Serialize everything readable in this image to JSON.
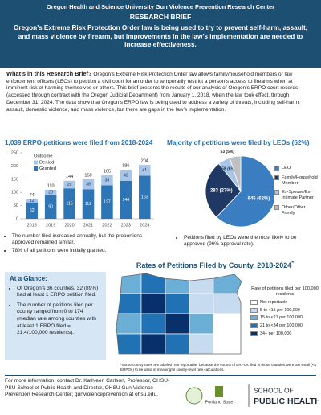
{
  "header": {
    "organization": "Oregon Health and Science University Gun Violence Prevention Research Center",
    "label": "RESEARCH BRIEF",
    "headline": "Oregon’s Extreme Risk Protection Order law is being used to try to prevent self-harm, assault, and mass violence by firearm, but improvements in the law’s implementation are needed to increase effectiveness."
  },
  "intro": {
    "heading": "What’s in this Research Brief?",
    "text": "Oregon’s Extreme Risk Protection Order law allows family/household members or law enforcement officers (LEOs) to petition a civil court for an order to temporarily restrict a person’s access to firearms when at imminent risk of harming themselves or others. This brief presents the results of our analysis of Oregon’s ERPO court records (accessed through contract with the Oregon Judicial Department) from January 1, 2018, when the law took effect, through December 31, 2024. The data show that Oregon’s ERPO law is being used to address a variety of threats, including self-harm, assault, domestic violence, and mass violence, but there are gaps in the law’s implementation."
  },
  "chart_data": [
    {
      "type": "bar",
      "stacked": true,
      "title": "1,039 ERPO petitions were filed from 2018-2024",
      "legend_title": "Outcome",
      "categories": [
        "2018",
        "2019",
        "2020",
        "2021",
        "2022",
        "2023",
        "2024"
      ],
      "series": [
        {
          "name": "Denied",
          "color": "#a9c6e8",
          "values": [
            12,
            20,
            29,
            38,
            38,
            42,
            41
          ]
        },
        {
          "name": "Granted",
          "color": "#2e75b6",
          "values": [
            62,
            90,
            115,
            112,
            127,
            144,
            163
          ]
        }
      ],
      "total_labels": [
        74,
        110,
        144,
        150,
        165,
        186,
        204
      ],
      "ylim": [
        0,
        250
      ],
      "yticks": [
        0,
        50,
        100,
        150,
        200,
        250
      ],
      "grid": false,
      "notes": [
        "The number filed increased annually, but the proportions approved remained similar.",
        "78% of all petitions were initially granted."
      ]
    },
    {
      "type": "pie",
      "title": "Majority of petitions were filed by LEOs (62%)",
      "categories": [
        "LEO",
        "Family/Household Member",
        "Ex-Spouse/Ex-Intimate Partner",
        "Other/Other Family"
      ],
      "values": [
        645,
        283,
        58,
        53
      ],
      "value_labels": [
        "645 (62%)",
        "283 (27%)",
        "58 (6%)",
        "53 (5%)"
      ],
      "colors": [
        "#3a7dc0",
        "#1f3864",
        "#a9c6e8",
        "#bfbfbf"
      ],
      "notes": [
        "Petitions filed by LEOs were the most likely to be approved (96% approval rate)."
      ]
    }
  ],
  "map": {
    "title": "Rates of Petitions Filed by County, 2018-2024",
    "title_mark": "*",
    "legend_title": "Rate of petitions filed per 100,000 residents",
    "legend": [
      {
        "label": "Not reportable",
        "color": "#ffffff"
      },
      {
        "label": "5 to <15 per 100,000",
        "color": "#c6dbef"
      },
      {
        "label": "15 to <21 per 100,000",
        "color": "#6baed6"
      },
      {
        "label": "21 to <34 per 100,000",
        "color": "#2171b5"
      },
      {
        "label": "34+ per 100,000",
        "color": "#08306b"
      }
    ],
    "footnote": "*Some county rates are labeled “not reportable” because the counts of ERPOs filed in those counties were too small (<5 ERPOs) to be used in meaningful county-level rate calculations."
  },
  "at_a_glance": {
    "heading": "At a Glance:",
    "bullets": [
      "Of Oregon’s 36 counties, 32 (89%) had at least 1 ERPO petition filed.",
      "The number of petitions filed per county ranged from 0 to 174 (median rate among counties with at least 1 ERPO filed = 21.4/100,000 residents)."
    ]
  },
  "footer": {
    "contact": "For more information, contact Dr. Kathleen Carlson, Professor, OHSU-PSU School of Public Health and Director, OHSU Gun Violence Prevention Research Center; gunviolenceprevention at ohsu.edu.",
    "logos": [
      "Portland State",
      "SCHOOL OF",
      "PUBLIC HEALTH"
    ]
  }
}
